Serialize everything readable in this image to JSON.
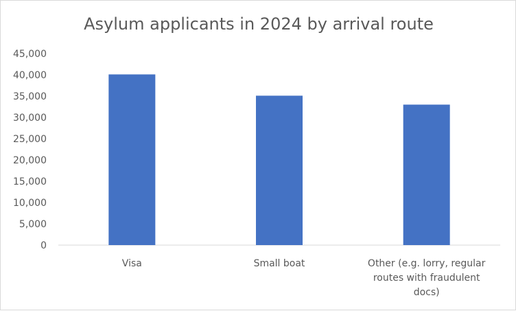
{
  "chart_data": {
    "type": "bar",
    "title": "Asylum applicants in 2024 by arrival route",
    "xlabel": "",
    "ylabel": "",
    "categories": [
      [
        "Visa"
      ],
      [
        "Small boat"
      ],
      [
        "Other (e.g. lorry, regular",
        "routes with fraudulent",
        "docs)"
      ]
    ],
    "values": [
      40100,
      35100,
      33000
    ],
    "ylim": [
      0,
      45000
    ],
    "y_ticks": [
      "0",
      "5,000",
      "10,000",
      "15,000",
      "20,000",
      "25,000",
      "30,000",
      "35,000",
      "40,000",
      "45,000"
    ],
    "bar_color": "#4472c4",
    "grid": false,
    "legend": "none"
  }
}
